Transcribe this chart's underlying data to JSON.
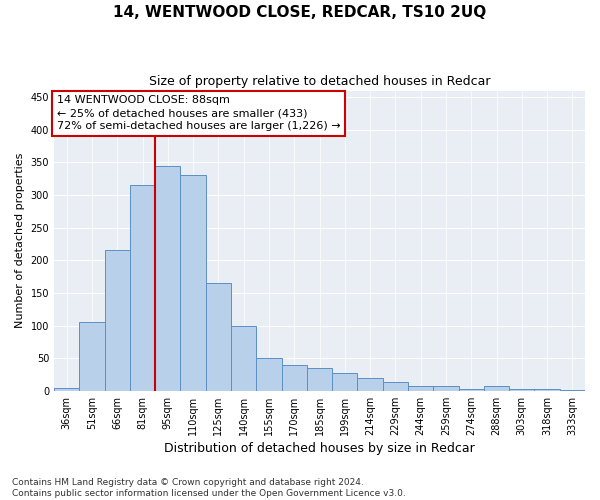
{
  "title": "14, WENTWOOD CLOSE, REDCAR, TS10 2UQ",
  "subtitle": "Size of property relative to detached houses in Redcar",
  "xlabel": "Distribution of detached houses by size in Redcar",
  "ylabel": "Number of detached properties",
  "categories": [
    "36sqm",
    "51sqm",
    "66sqm",
    "81sqm",
    "95sqm",
    "110sqm",
    "125sqm",
    "140sqm",
    "155sqm",
    "170sqm",
    "185sqm",
    "199sqm",
    "214sqm",
    "229sqm",
    "244sqm",
    "259sqm",
    "274sqm",
    "288sqm",
    "303sqm",
    "318sqm",
    "333sqm"
  ],
  "values": [
    5,
    105,
    215,
    315,
    345,
    330,
    165,
    100,
    50,
    40,
    35,
    28,
    20,
    13,
    8,
    8,
    3,
    8,
    3,
    3,
    2
  ],
  "bar_color": "#b8d0ea",
  "bar_edge_color": "#5b8fc7",
  "vline_color": "#cc0000",
  "vline_x_index": 3.5,
  "annotation_line1": "14 WENTWOOD CLOSE: 88sqm",
  "annotation_line2": "← 25% of detached houses are smaller (433)",
  "annotation_line3": "72% of semi-detached houses are larger (1,226) →",
  "annotation_box_facecolor": "#ffffff",
  "annotation_box_edgecolor": "#cc0000",
  "ylim": [
    0,
    460
  ],
  "yticks": [
    0,
    50,
    100,
    150,
    200,
    250,
    300,
    350,
    400,
    450
  ],
  "footer_line1": "Contains HM Land Registry data © Crown copyright and database right 2024.",
  "footer_line2": "Contains public sector information licensed under the Open Government Licence v3.0.",
  "title_fontsize": 11,
  "subtitle_fontsize": 9,
  "xlabel_fontsize": 9,
  "ylabel_fontsize": 8,
  "tick_fontsize": 7,
  "annotation_fontsize": 8,
  "footer_fontsize": 6.5,
  "grid_color": "#ffffff",
  "bg_color": "#e8eef4"
}
